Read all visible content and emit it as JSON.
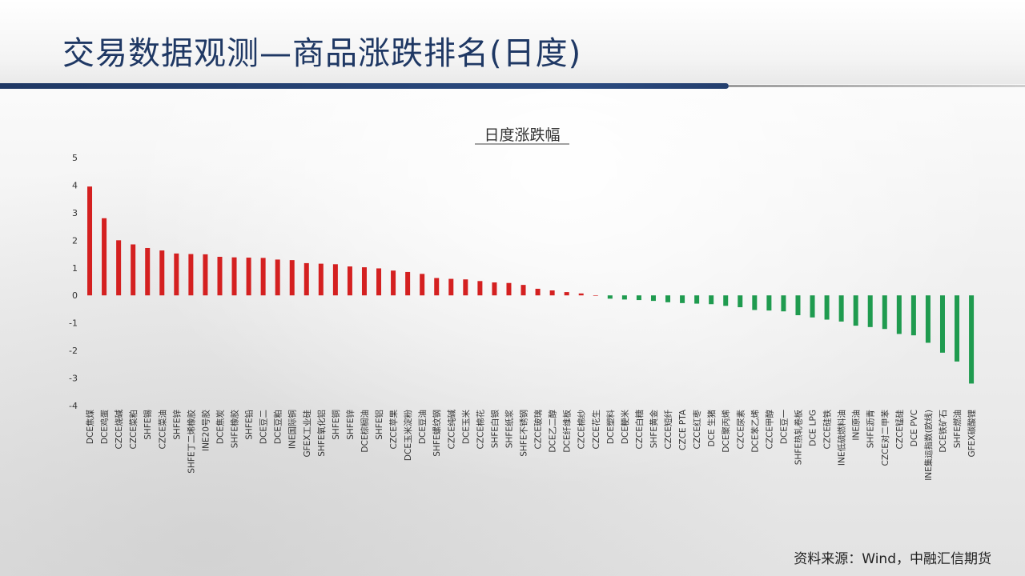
{
  "slide": {
    "title": "交易数据观测—商品涨跌排名(日度)",
    "source": "资料来源：Wind，中融汇信期货"
  },
  "colors": {
    "up": "#d42020",
    "down": "#1f9b4f",
    "title": "#1f3864"
  },
  "chart_data": {
    "type": "bar",
    "title": "日度涨跌幅",
    "xlabel": "",
    "ylabel": "",
    "ylim": [
      -4,
      5
    ],
    "yticks": [
      5,
      4,
      3,
      2,
      1,
      0,
      -1,
      -2,
      -3,
      -4
    ],
    "grid": false,
    "legend": "none",
    "categories": [
      "DCE焦煤",
      "DCE鸡蛋",
      "CZCE烧碱",
      "CZCE菜粕",
      "SHFE锡",
      "CZCE菜油",
      "SHFE锌",
      "SHFE丁二烯橡胶",
      "INE20号胶",
      "DCE焦炭",
      "SHFE橡胶",
      "SHFE铅",
      "DCE豆二",
      "DCE豆粕",
      "INE国际铜",
      "GFEX工业硅",
      "SHFE氧化铝",
      "SHFE铜",
      "SHFE锌",
      "DCE棕榈油",
      "SHFE铝",
      "CZCE苹果",
      "DCE玉米淀粉",
      "DCE豆油",
      "SHFE螺纹钢",
      "CZCE纯碱",
      "DCE玉米",
      "CZCE棉花",
      "SHFE白银",
      "SHFE纸浆",
      "SHFE不锈钢",
      "CZCE玻璃",
      "DCE乙二醇",
      "DCE纤维板",
      "CZCE棉纱",
      "CZCE花生",
      "DCE塑料",
      "DCE粳米",
      "CZCE白糖",
      "SHFE黄金",
      "CZCE短纤",
      "CZCE PTA",
      "CZCE红枣",
      "DCE 生猪",
      "DCE聚丙烯",
      "CZCE尿素",
      "DCE苯乙烯",
      "CZCE甲醇",
      "DCE豆一",
      "SHFE热轧卷板",
      "DCE LPG",
      "CZCE硅铁",
      "INE低硫燃料油",
      "INE原油",
      "SHFE沥青",
      "CZCE对二甲苯",
      "CZCE锰硅",
      "DCE PVC",
      "INE集运指数(欧线)",
      "DCE铁矿石",
      "SHFE燃油",
      "GFEX碳酸锂"
    ],
    "values": [
      3.95,
      2.8,
      2.0,
      1.85,
      1.72,
      1.63,
      1.52,
      1.5,
      1.49,
      1.4,
      1.38,
      1.37,
      1.36,
      1.3,
      1.28,
      1.17,
      1.15,
      1.13,
      1.05,
      1.02,
      0.98,
      0.9,
      0.85,
      0.78,
      0.63,
      0.6,
      0.58,
      0.52,
      0.47,
      0.45,
      0.38,
      0.24,
      0.18,
      0.12,
      0.07,
      0.0,
      -0.12,
      -0.15,
      -0.17,
      -0.2,
      -0.25,
      -0.28,
      -0.3,
      -0.32,
      -0.38,
      -0.43,
      -0.53,
      -0.55,
      -0.58,
      -0.72,
      -0.8,
      -0.88,
      -0.95,
      -1.1,
      -1.15,
      -1.22,
      -1.4,
      -1.45,
      -1.72,
      -2.08,
      -2.4,
      -3.2
    ]
  }
}
